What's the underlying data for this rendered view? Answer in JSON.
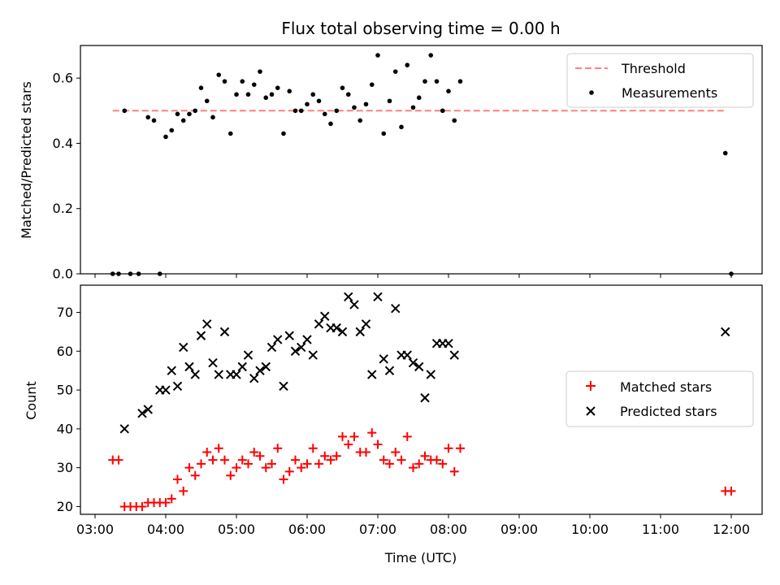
{
  "chart_data": [
    {
      "type": "scatter",
      "title": "Flux total observing time = 0.00 h",
      "xlabel": "",
      "ylabel": "Matched/Predicted stars",
      "ylim": [
        0,
        0.7
      ],
      "xlim": [
        "03:00",
        "12:30"
      ],
      "yticks": [
        "0.0",
        "0.2",
        "0.4",
        "0.6"
      ],
      "legend": {
        "position": "top-right",
        "threshold_label": "Threshold",
        "measurements_label": "Measurements"
      },
      "threshold": {
        "value": 0.5,
        "x_start": "03:15",
        "x_end": "11:55",
        "color": "#ff7f7f"
      },
      "series": [
        {
          "name": "Measurements",
          "color": "#000000",
          "points": [
            [
              "03:15",
              0.0
            ],
            [
              "03:20",
              0.0
            ],
            [
              "03:25",
              0.5
            ],
            [
              "03:30",
              0.0
            ],
            [
              "03:37",
              0.0
            ],
            [
              "03:45",
              0.48
            ],
            [
              "03:50",
              0.47
            ],
            [
              "03:55",
              0.0
            ],
            [
              "04:00",
              0.42
            ],
            [
              "04:05",
              0.44
            ],
            [
              "04:10",
              0.49
            ],
            [
              "04:15",
              0.47
            ],
            [
              "04:20",
              0.49
            ],
            [
              "04:25",
              0.5
            ],
            [
              "04:30",
              0.57
            ],
            [
              "04:35",
              0.53
            ],
            [
              "04:40",
              0.48
            ],
            [
              "04:45",
              0.61
            ],
            [
              "04:50",
              0.59
            ],
            [
              "04:55",
              0.43
            ],
            [
              "05:00",
              0.55
            ],
            [
              "05:05",
              0.59
            ],
            [
              "05:10",
              0.55
            ],
            [
              "05:15",
              0.58
            ],
            [
              "05:20",
              0.62
            ],
            [
              "05:25",
              0.54
            ],
            [
              "05:30",
              0.55
            ],
            [
              "05:35",
              0.57
            ],
            [
              "05:40",
              0.43
            ],
            [
              "05:45",
              0.56
            ],
            [
              "05:50",
              0.5
            ],
            [
              "05:55",
              0.5
            ],
            [
              "06:00",
              0.52
            ],
            [
              "06:05",
              0.55
            ],
            [
              "06:10",
              0.53
            ],
            [
              "06:15",
              0.49
            ],
            [
              "06:20",
              0.46
            ],
            [
              "06:25",
              0.5
            ],
            [
              "06:30",
              0.57
            ],
            [
              "06:35",
              0.55
            ],
            [
              "06:40",
              0.51
            ],
            [
              "06:45",
              0.47
            ],
            [
              "06:50",
              0.52
            ],
            [
              "06:55",
              0.58
            ],
            [
              "07:00",
              0.67
            ],
            [
              "07:05",
              0.43
            ],
            [
              "07:10",
              0.53
            ],
            [
              "07:15",
              0.62
            ],
            [
              "07:20",
              0.45
            ],
            [
              "07:25",
              0.64
            ],
            [
              "07:30",
              0.51
            ],
            [
              "07:35",
              0.54
            ],
            [
              "07:40",
              0.59
            ],
            [
              "07:45",
              0.67
            ],
            [
              "07:50",
              0.59
            ],
            [
              "07:55",
              0.5
            ],
            [
              "08:00",
              0.56
            ],
            [
              "08:05",
              0.47
            ],
            [
              "08:10",
              0.59
            ],
            [
              "11:55",
              0.37
            ],
            [
              "12:00",
              0.0
            ]
          ]
        }
      ]
    },
    {
      "type": "scatter",
      "title": "",
      "xlabel": "Time (UTC)",
      "ylabel": "Count",
      "ylim": [
        18,
        77
      ],
      "xlim": [
        "03:00",
        "12:30"
      ],
      "xticks": [
        "03:00",
        "04:00",
        "05:00",
        "06:00",
        "07:00",
        "08:00",
        "09:00",
        "10:00",
        "11:00",
        "12:00"
      ],
      "yticks": [
        "20",
        "30",
        "40",
        "50",
        "60",
        "70"
      ],
      "legend": {
        "position": "center-right",
        "matched_label": "Matched stars",
        "predicted_label": "Predicted stars"
      },
      "series": [
        {
          "name": "Matched stars",
          "marker": "+",
          "color": "#ff0000",
          "points": [
            [
              "03:15",
              32
            ],
            [
              "03:20",
              32
            ],
            [
              "03:25",
              20
            ],
            [
              "03:30",
              20
            ],
            [
              "03:35",
              20
            ],
            [
              "03:40",
              20
            ],
            [
              "03:45",
              21
            ],
            [
              "03:50",
              21
            ],
            [
              "03:55",
              21
            ],
            [
              "04:00",
              21
            ],
            [
              "04:05",
              22
            ],
            [
              "04:10",
              27
            ],
            [
              "04:15",
              24
            ],
            [
              "04:20",
              30
            ],
            [
              "04:25",
              28
            ],
            [
              "04:30",
              31
            ],
            [
              "04:35",
              34
            ],
            [
              "04:40",
              32
            ],
            [
              "04:45",
              35
            ],
            [
              "04:50",
              32
            ],
            [
              "04:55",
              28
            ],
            [
              "05:00",
              30
            ],
            [
              "05:05",
              32
            ],
            [
              "05:10",
              31
            ],
            [
              "05:15",
              34
            ],
            [
              "05:20",
              33
            ],
            [
              "05:25",
              30
            ],
            [
              "05:30",
              31
            ],
            [
              "05:35",
              35
            ],
            [
              "05:40",
              27
            ],
            [
              "05:45",
              29
            ],
            [
              "05:50",
              32
            ],
            [
              "05:55",
              30
            ],
            [
              "06:00",
              31
            ],
            [
              "06:05",
              35
            ],
            [
              "06:10",
              31
            ],
            [
              "06:15",
              33
            ],
            [
              "06:20",
              32
            ],
            [
              "06:25",
              33
            ],
            [
              "06:30",
              38
            ],
            [
              "06:35",
              36
            ],
            [
              "06:40",
              38
            ],
            [
              "06:45",
              34
            ],
            [
              "06:50",
              34
            ],
            [
              "06:55",
              39
            ],
            [
              "07:00",
              36
            ],
            [
              "07:05",
              32
            ],
            [
              "07:10",
              31
            ],
            [
              "07:15",
              34
            ],
            [
              "07:20",
              32
            ],
            [
              "07:25",
              38
            ],
            [
              "07:30",
              30
            ],
            [
              "07:35",
              31
            ],
            [
              "07:40",
              33
            ],
            [
              "07:45",
              32
            ],
            [
              "07:50",
              32
            ],
            [
              "07:55",
              31
            ],
            [
              "08:00",
              35
            ],
            [
              "08:05",
              29
            ],
            [
              "08:10",
              35
            ],
            [
              "11:55",
              24
            ],
            [
              "12:00",
              24
            ]
          ]
        },
        {
          "name": "Predicted stars",
          "marker": "x",
          "color": "#000000",
          "points": [
            [
              "03:25",
              40
            ],
            [
              "03:40",
              44
            ],
            [
              "03:45",
              45
            ],
            [
              "03:55",
              50
            ],
            [
              "04:00",
              50
            ],
            [
              "04:05",
              55
            ],
            [
              "04:10",
              51
            ],
            [
              "04:15",
              61
            ],
            [
              "04:20",
              56
            ],
            [
              "04:25",
              54
            ],
            [
              "04:30",
              64
            ],
            [
              "04:35",
              67
            ],
            [
              "04:40",
              57
            ],
            [
              "04:45",
              54
            ],
            [
              "04:50",
              65
            ],
            [
              "04:55",
              54
            ],
            [
              "05:00",
              54
            ],
            [
              "05:05",
              56
            ],
            [
              "05:10",
              59
            ],
            [
              "05:15",
              53
            ],
            [
              "05:20",
              55
            ],
            [
              "05:25",
              56
            ],
            [
              "05:30",
              61
            ],
            [
              "05:35",
              63
            ],
            [
              "05:40",
              51
            ],
            [
              "05:45",
              64
            ],
            [
              "05:50",
              60
            ],
            [
              "05:55",
              61
            ],
            [
              "06:00",
              63
            ],
            [
              "06:05",
              59
            ],
            [
              "06:10",
              67
            ],
            [
              "06:15",
              69
            ],
            [
              "06:20",
              66
            ],
            [
              "06:25",
              66
            ],
            [
              "06:30",
              65
            ],
            [
              "06:35",
              74
            ],
            [
              "06:40",
              72
            ],
            [
              "06:45",
              65
            ],
            [
              "06:50",
              67
            ],
            [
              "06:55",
              54
            ],
            [
              "07:00",
              74
            ],
            [
              "07:05",
              58
            ],
            [
              "07:10",
              55
            ],
            [
              "07:15",
              71
            ],
            [
              "07:20",
              59
            ],
            [
              "07:25",
              59
            ],
            [
              "07:30",
              57
            ],
            [
              "07:35",
              56
            ],
            [
              "07:40",
              48
            ],
            [
              "07:45",
              54
            ],
            [
              "07:50",
              62
            ],
            [
              "07:55",
              62
            ],
            [
              "08:00",
              62
            ],
            [
              "08:05",
              59
            ],
            [
              "11:55",
              65
            ]
          ]
        }
      ]
    }
  ]
}
